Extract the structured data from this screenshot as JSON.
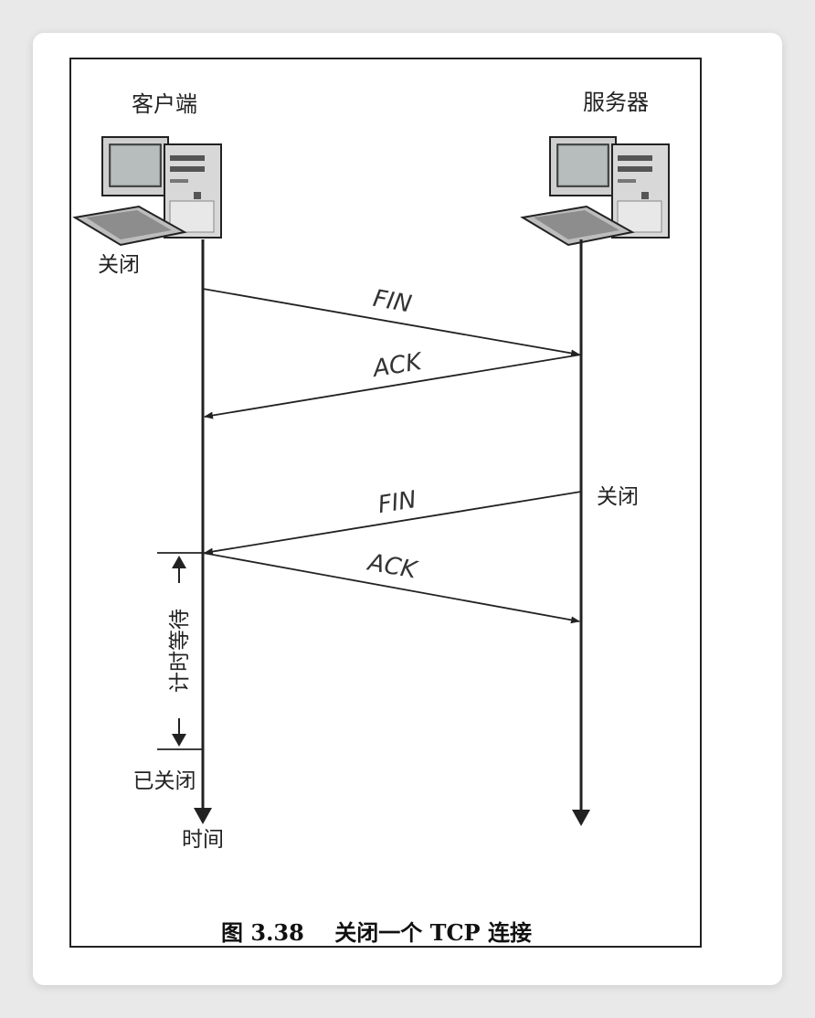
{
  "client": {
    "title": "客户端",
    "closed_label": "关闭"
  },
  "server": {
    "title": "服务器",
    "closed_label": "关闭"
  },
  "messages": [
    {
      "label": "FIN",
      "direction": "client-to-server"
    },
    {
      "label": "ACK",
      "direction": "server-to-client"
    },
    {
      "label": "FIN",
      "direction": "server-to-client"
    },
    {
      "label": "ACK",
      "direction": "client-to-server"
    }
  ],
  "timed_wait_label": "计时等待",
  "closed_label": "已关闭",
  "time_label": "时间",
  "caption": "图 3.38    关闭一个 TCP 连接",
  "icons": {
    "client": "desktop-computer-icon",
    "server": "desktop-computer-icon"
  }
}
